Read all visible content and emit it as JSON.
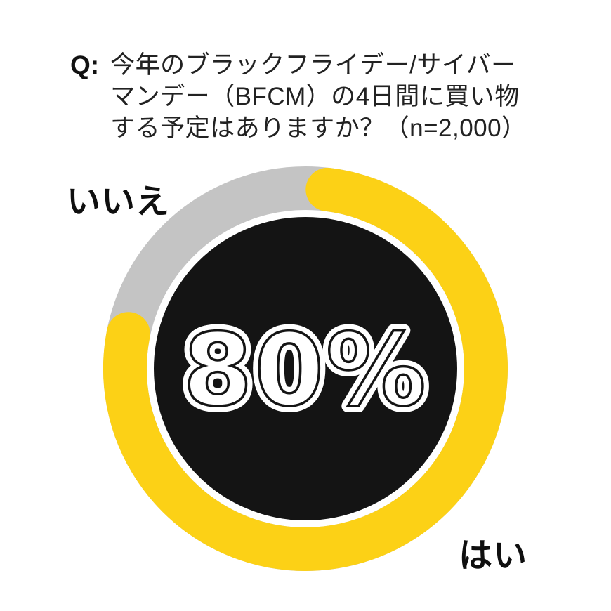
{
  "page": {
    "background": "#ffffff"
  },
  "header": {
    "prefix": "Q:",
    "question_lines": [
      "今年のブラックフライデー/サイバー",
      "マンデー（BFCM）の4日間に買い物",
      "する予定はありますか？（n=2,000）"
    ],
    "sample_size": "n=2,000"
  },
  "chart_data": {
    "type": "pie",
    "subtype": "donut",
    "title": "今年のブラックフライデー/サイバーマンデー（BFCM）の4日間に買い物する予定はありますか？（n=2,000）",
    "categories": [
      "はい",
      "いいえ"
    ],
    "values": [
      80,
      20
    ],
    "unit": "%",
    "center_label": "80%",
    "legend_position": "outside-labels",
    "labels": {
      "yes": "はい",
      "no": "いいえ"
    },
    "colors": {
      "yes": "#FCD116",
      "no": "#C4C4C4",
      "center": "#141414",
      "center_text": "#ffffff"
    }
  }
}
